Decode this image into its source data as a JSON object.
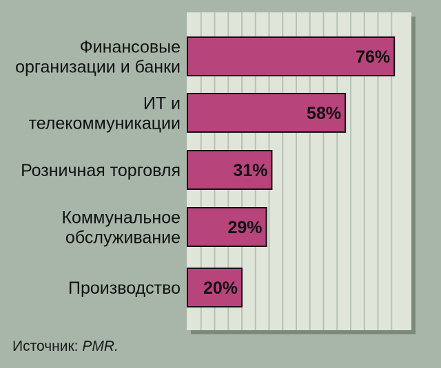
{
  "colors": {
    "background": "#a8b6aa",
    "plot_background": "#dfe6d9",
    "grid": "#b7c1b5",
    "bar_fill": "#b8447c",
    "bar_stroke": "#111111",
    "shadow": "#7c897d"
  },
  "chart_data": {
    "type": "bar",
    "orientation": "horizontal",
    "categories": [
      [
        "Финансовые",
        "организации и банки"
      ],
      [
        "ИТ и",
        "телекоммуникации"
      ],
      [
        "Розничная торговля"
      ],
      [
        "Коммунальное",
        "обслуживание"
      ],
      [
        "Производство"
      ]
    ],
    "values": [
      76,
      58,
      31,
      29,
      20
    ],
    "value_labels": [
      "76%",
      "58%",
      "31%",
      "29%",
      "20%"
    ],
    "xlim": [
      0,
      80
    ],
    "grid": true,
    "grid_step": 5
  },
  "source": {
    "prefix": "Источник: ",
    "name": "PMR."
  }
}
